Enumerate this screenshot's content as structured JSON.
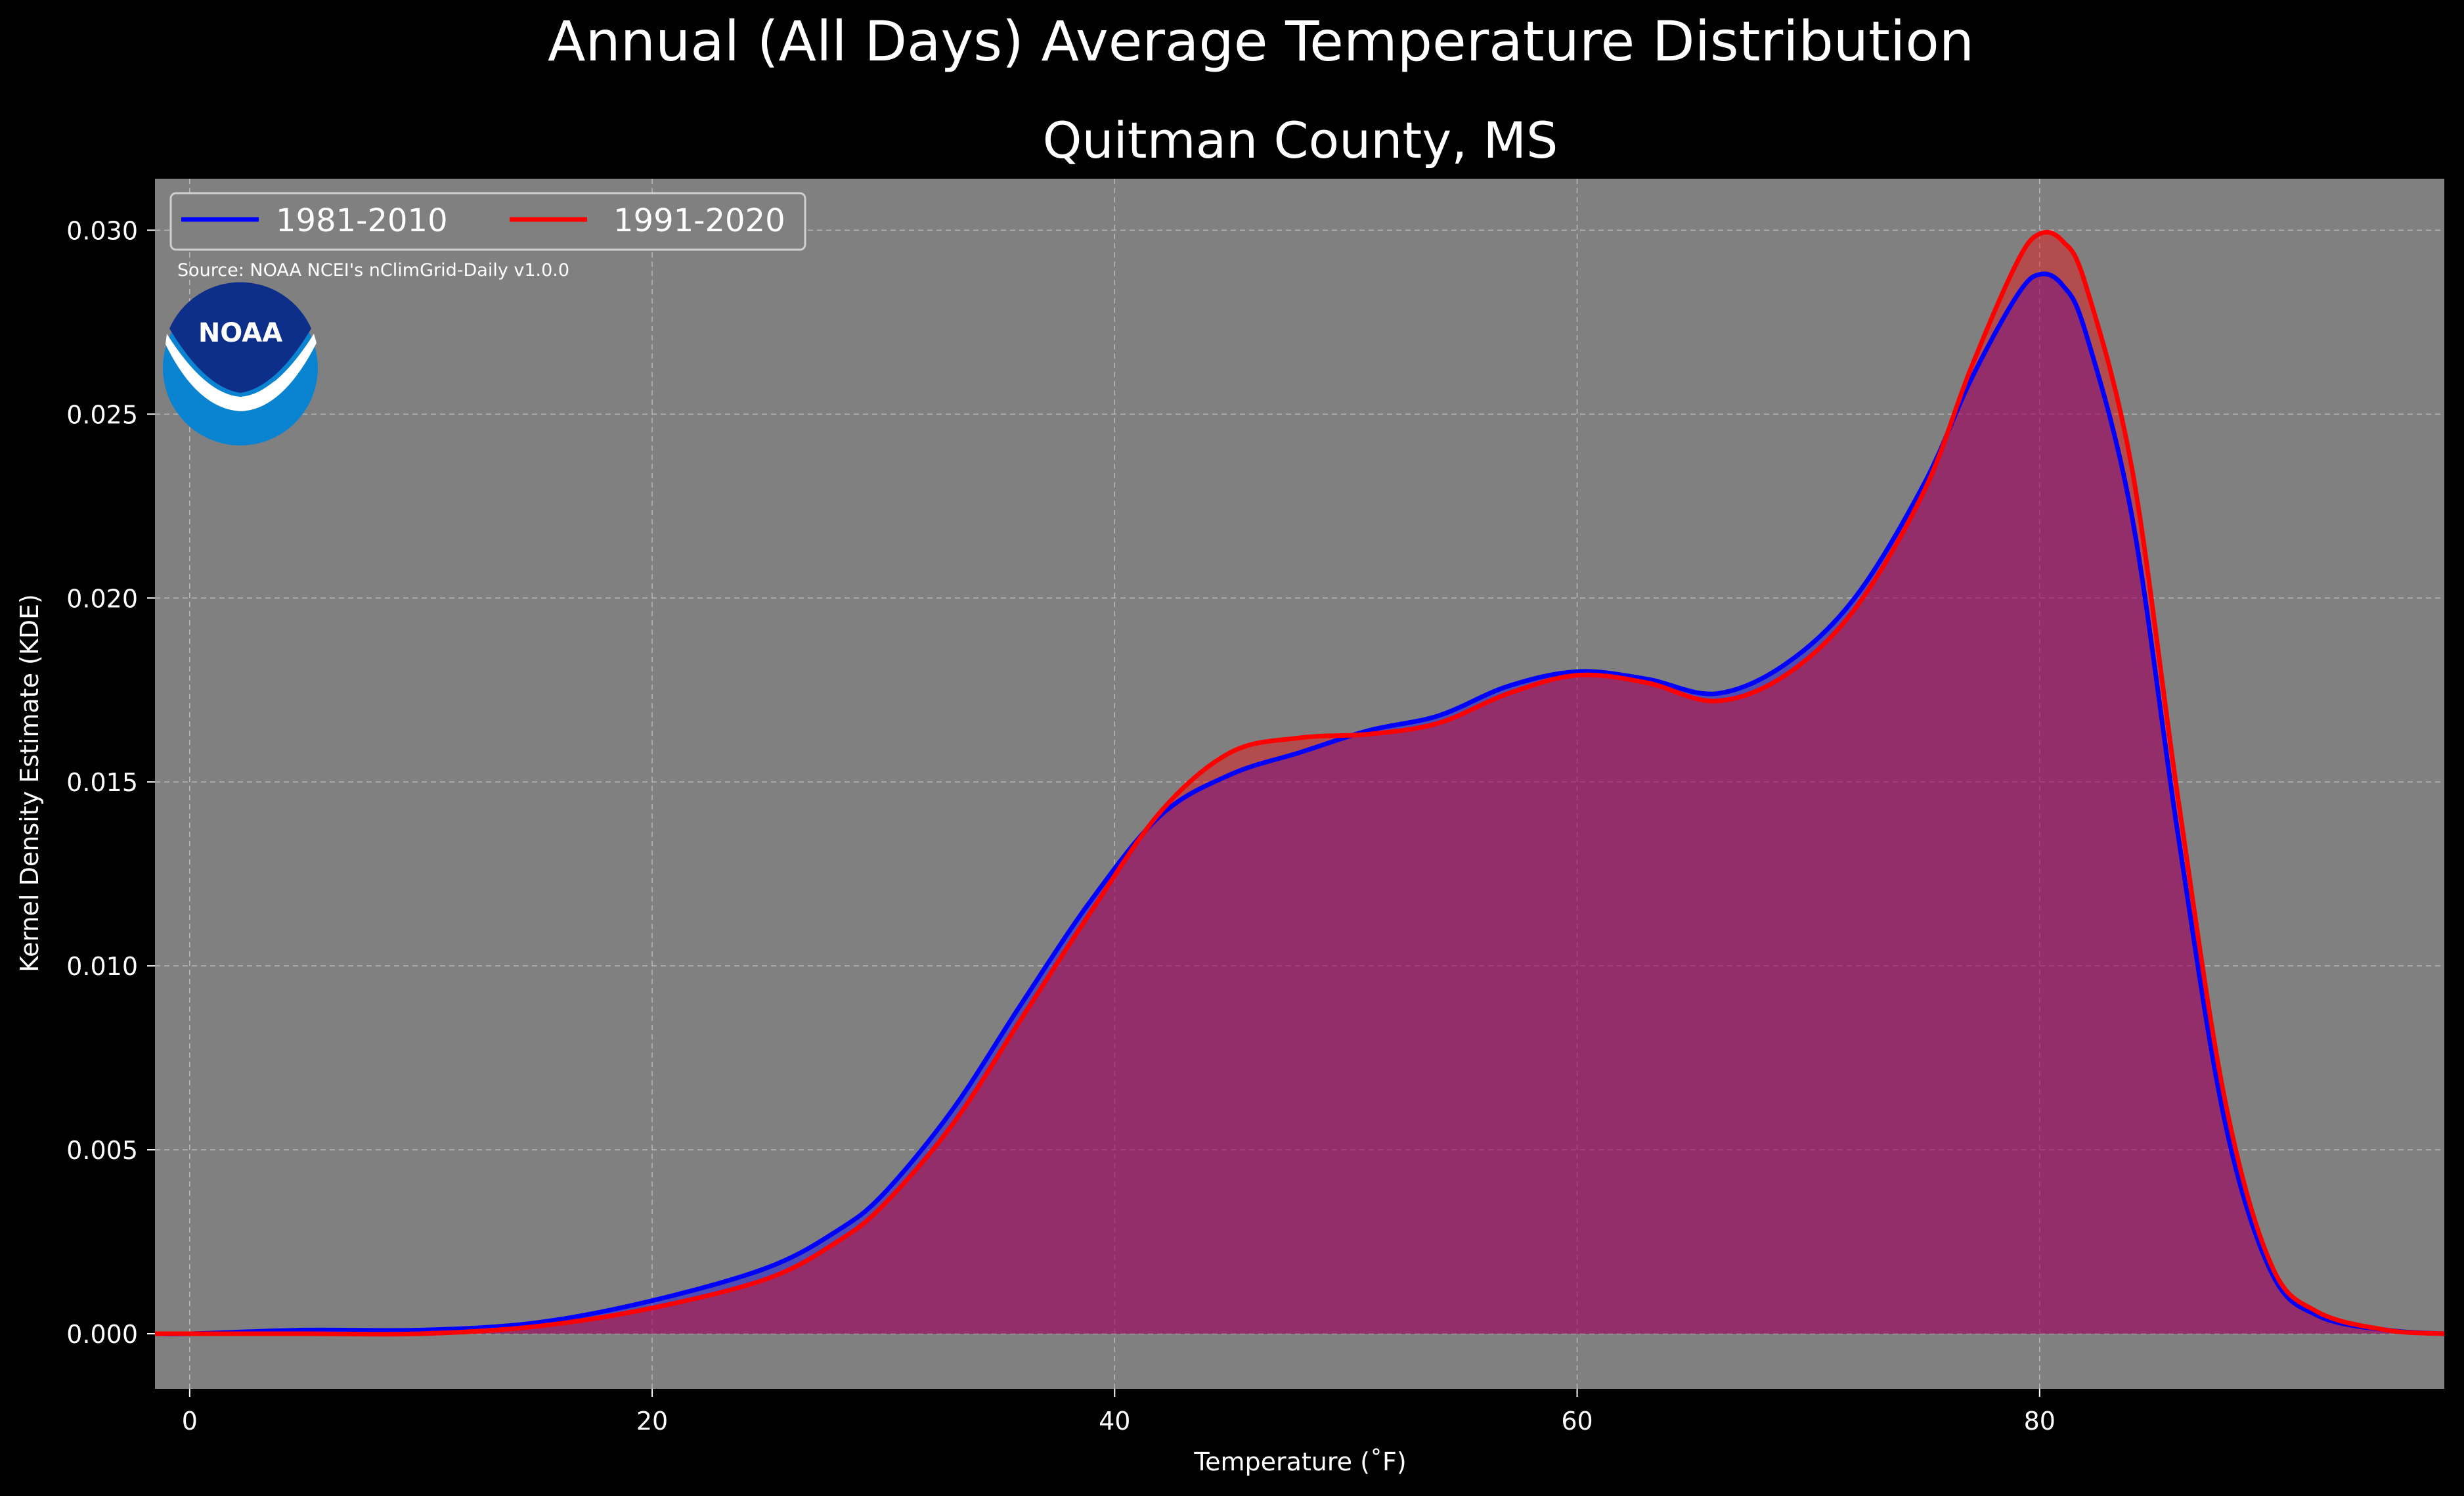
{
  "chart_data": {
    "type": "area",
    "suptitle": "Annual (All Days) Average Temperature Distribution",
    "title": "Quitman County, MS",
    "xlabel": "Temperature (˚F)",
    "ylabel": "Kernel Density Estimate (KDE)",
    "xlim": [
      -1.5,
      97.5
    ],
    "ylim": [
      -0.0015,
      0.0314
    ],
    "xticks": [
      0,
      20,
      40,
      60,
      80
    ],
    "yticks": [
      0.0,
      0.005,
      0.01,
      0.015,
      0.02,
      0.025,
      0.03
    ],
    "ytick_labels": [
      "0.000",
      "0.005",
      "0.010",
      "0.015",
      "0.020",
      "0.025",
      "0.030"
    ],
    "grid": true,
    "legend_position": "upper-left",
    "source_note": "Source: NOAA NCEI's nClimGrid-Daily v1.0.0",
    "logo_text": "NOAA",
    "series": [
      {
        "name": "1981-2010",
        "color": "#0000ff",
        "fill_color": "#0000ff",
        "x": [
          -1.5,
          0,
          5,
          10,
          15,
          20,
          25,
          28,
          30,
          33,
          36,
          39,
          42,
          45,
          48,
          51,
          54,
          57,
          60,
          63,
          66,
          69,
          72,
          75,
          77,
          79,
          80,
          81,
          82,
          84,
          86,
          88,
          90,
          92,
          95,
          97.5
        ],
        "y": [
          0.0,
          0.0,
          0.0001,
          0.0001,
          0.0003,
          0.0009,
          0.0018,
          0.0028,
          0.0038,
          0.0061,
          0.009,
          0.0118,
          0.0141,
          0.0152,
          0.0158,
          0.0164,
          0.0168,
          0.0176,
          0.018,
          0.0178,
          0.0174,
          0.0182,
          0.02,
          0.0231,
          0.0259,
          0.0282,
          0.0288,
          0.0285,
          0.0272,
          0.0222,
          0.0135,
          0.0058,
          0.0017,
          0.0005,
          0.0001,
          0.0
        ]
      },
      {
        "name": "1991-2020",
        "color": "#ff0000",
        "fill_color": "#ff0000",
        "x": [
          -1.5,
          0,
          5,
          10,
          15,
          20,
          25,
          28,
          30,
          33,
          36,
          39,
          42,
          45,
          48,
          51,
          54,
          57,
          60,
          63,
          66,
          69,
          72,
          75,
          77,
          79,
          80,
          81,
          82,
          84,
          86,
          88,
          90,
          92,
          95,
          97.5
        ],
        "y": [
          0.0,
          0.0,
          0.0,
          0.0,
          0.0002,
          0.0007,
          0.0015,
          0.0025,
          0.0035,
          0.0057,
          0.0086,
          0.0115,
          0.0142,
          0.0158,
          0.0162,
          0.0163,
          0.0166,
          0.0174,
          0.0179,
          0.0177,
          0.0172,
          0.0179,
          0.0197,
          0.0229,
          0.0262,
          0.0291,
          0.0299,
          0.0297,
          0.0285,
          0.0235,
          0.0145,
          0.0064,
          0.0019,
          0.0006,
          0.0001,
          0.0
        ]
      }
    ]
  }
}
